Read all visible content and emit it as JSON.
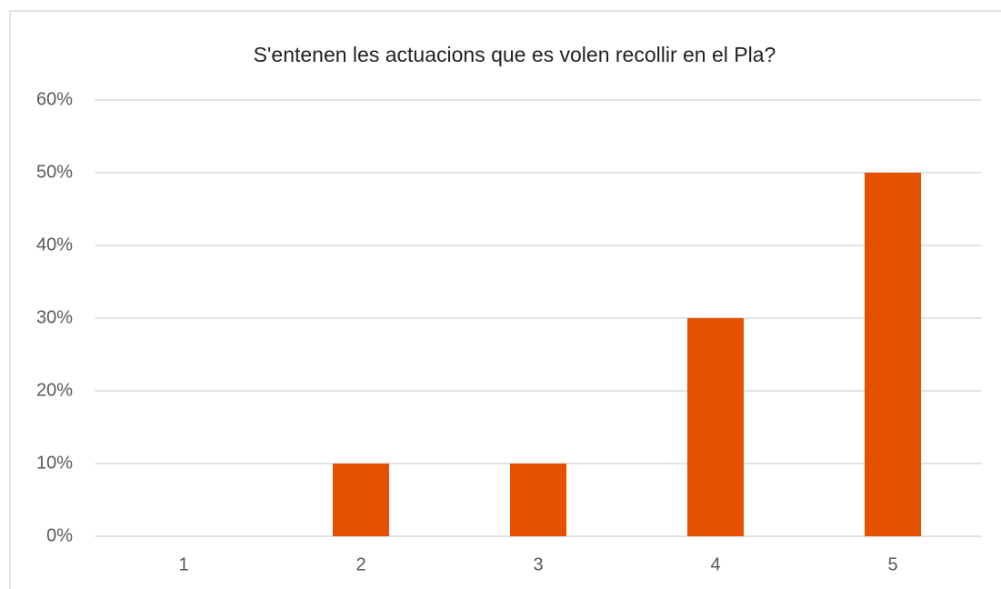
{
  "chart_data": {
    "type": "bar",
    "title": "S'entenen les actuacions que es volen recollir en el Pla?",
    "categories": [
      "1",
      "2",
      "3",
      "4",
      "5"
    ],
    "values": [
      0,
      10,
      10,
      30,
      50
    ],
    "color": "#e65100",
    "ylim": [
      0,
      60
    ],
    "yticks": [
      {
        "value": 0,
        "label": "0%"
      },
      {
        "value": 10,
        "label": "10%"
      },
      {
        "value": 20,
        "label": "20%"
      },
      {
        "value": 30,
        "label": "30%"
      },
      {
        "value": 40,
        "label": "40%"
      },
      {
        "value": 50,
        "label": "50%"
      },
      {
        "value": 60,
        "label": "60%"
      }
    ],
    "grid": true
  }
}
